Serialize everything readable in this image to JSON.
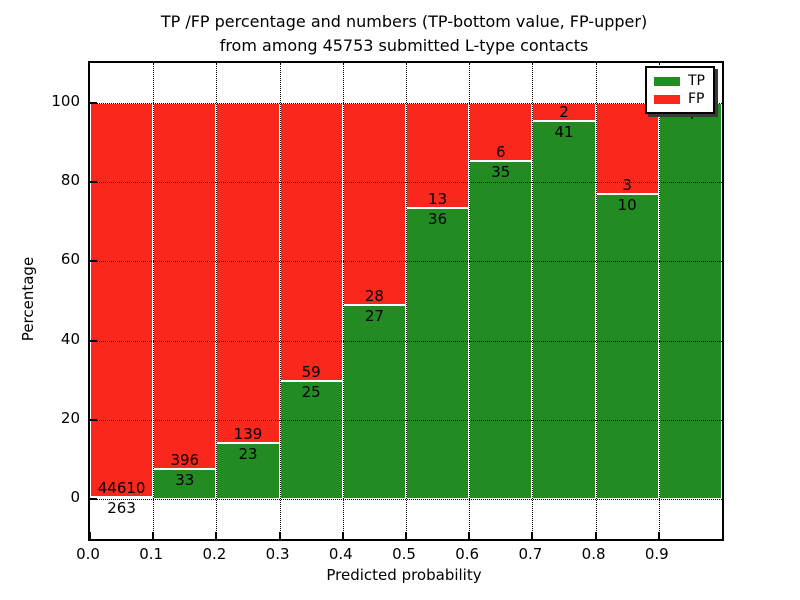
{
  "chart_data": {
    "type": "bar",
    "stacked": true,
    "title_line1": "TP /FP percentage and numbers (TP-bottom value, FP-upper)",
    "title_line2": "from among 45753 submitted L-type contacts",
    "xlabel": "Predicted probability",
    "ylabel": "Percentage",
    "total_submitted": 45753,
    "xlim": [
      0.0,
      1.0
    ],
    "ylim": [
      -10,
      110
    ],
    "x_ticks": [
      "0.0",
      "0.1",
      "0.2",
      "0.3",
      "0.4",
      "0.5",
      "0.6",
      "0.7",
      "0.8",
      "0.9"
    ],
    "y_ticks": [
      0,
      20,
      40,
      60,
      80,
      100
    ],
    "grid": true,
    "bin_width": 0.1,
    "note": "bar height = TP/(TP+FP)*100; TP count printed below segment boundary, FP count above",
    "bins": [
      {
        "x0": 0.0,
        "x1": 0.1,
        "tp": 263,
        "fp": 44610
      },
      {
        "x0": 0.1,
        "x1": 0.2,
        "tp": 33,
        "fp": 396
      },
      {
        "x0": 0.2,
        "x1": 0.3,
        "tp": 23,
        "fp": 139
      },
      {
        "x0": 0.3,
        "x1": 0.4,
        "tp": 25,
        "fp": 59
      },
      {
        "x0": 0.4,
        "x1": 0.5,
        "tp": 27,
        "fp": 28
      },
      {
        "x0": 0.5,
        "x1": 0.6,
        "tp": 36,
        "fp": 13
      },
      {
        "x0": 0.6,
        "x1": 0.7,
        "tp": 35,
        "fp": 6
      },
      {
        "x0": 0.7,
        "x1": 0.8,
        "tp": 41,
        "fp": 2
      },
      {
        "x0": 0.8,
        "x1": 0.9,
        "tp": 10,
        "fp": 3
      },
      {
        "x0": 0.9,
        "x1": 1.0,
        "tp": 4,
        "fp": 0
      }
    ],
    "legend": [
      {
        "label": "TP",
        "color": "#228b22"
      },
      {
        "label": "FP",
        "color": "#fa271d"
      }
    ],
    "legend_position": "upper right",
    "colors": {
      "tp": "#228b22",
      "fp": "#fa271d",
      "grid": "#000000",
      "background": "#ffffff"
    }
  }
}
